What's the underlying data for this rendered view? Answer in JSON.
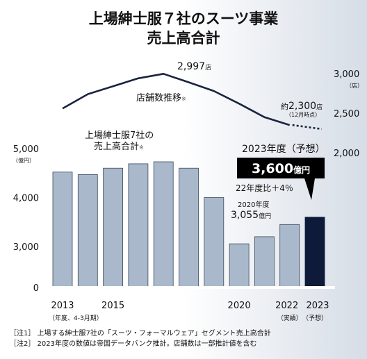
{
  "title_line1": "上場紳士服７社のスーツ事業",
  "title_line2": "売上高合計",
  "colors": {
    "bar": "#a9b9cb",
    "bar_stroke": "#3a4a5c",
    "bar_highlight": "#0d1a3a",
    "line": "#1a2440",
    "background_gradient": "#d6dde6"
  },
  "chart_data": {
    "type": "bar",
    "categories": [
      "2013",
      "2014",
      "2015",
      "2016",
      "2017",
      "2018",
      "2019",
      "2020",
      "2021",
      "2022",
      "2023"
    ],
    "tick_labels": [
      {
        "index": 0,
        "text": "2013"
      },
      {
        "index": 2,
        "text": "2015"
      },
      {
        "index": 7,
        "text": "2020"
      },
      {
        "index": 9,
        "text": "2022"
      },
      {
        "index": 10,
        "text": "2023"
      }
    ],
    "tick_sublabels": [
      {
        "index": 0,
        "text": "（年度、4-3月期）"
      },
      {
        "index": 9,
        "text": "（実績）"
      },
      {
        "index": 10,
        "text": "（予想）"
      }
    ],
    "series": [
      {
        "name": "上場紳士服7社の売上高合計",
        "values": [
          4520,
          4470,
          4600,
          4690,
          4730,
          4600,
          4000,
          3055,
          3200,
          3450,
          3600
        ]
      }
    ],
    "sales_label": [
      "上場紳士服7社の",
      "売上高合計",
      "※"
    ],
    "ylim": [
      0,
      5000
    ],
    "y_ticks": [
      {
        "value": 0,
        "text": "0"
      },
      {
        "value": 3000,
        "text": "3,000"
      },
      {
        "value": 4000,
        "text": "4,000"
      },
      {
        "value": 5000,
        "text": "5,000"
      }
    ],
    "y_unit": "（億円）",
    "store_line": {
      "name": "店舗数推移",
      "name_mark": "※",
      "values": [
        2560,
        2740,
        2840,
        2940,
        2997,
        2890,
        2780,
        2620,
        2450,
        2350
      ],
      "forecast_values": [
        2350,
        2300
      ],
      "ylim": [
        2000,
        3000
      ],
      "ticks": [
        {
          "value": 3000,
          "text": "3,000"
        },
        {
          "value": 2500,
          "text": "2,500"
        },
        {
          "value": 2000,
          "text": "2,000"
        }
      ],
      "unit": "（店）",
      "peak_value": "2,997",
      "peak_unit": "店",
      "end_prefix": "約",
      "end_value": "2,300",
      "end_unit": "店",
      "end_note": "（12月時点）"
    },
    "annotation_2020": {
      "year": "2020年度",
      "value": "3,055",
      "unit": "億円"
    },
    "forecast": {
      "heading": "2023年度（予想）",
      "value": "3,600",
      "unit": "億円",
      "change": "22年度比＋4％"
    }
  },
  "notes": [
    "［注1］ 上場する紳士服7社の「スーツ・フォーマルウェア」セグメント売上高合計",
    "［注2］ 2023年度の数値は帝国データバンク推計。店舗数は一部推計値を含む"
  ]
}
